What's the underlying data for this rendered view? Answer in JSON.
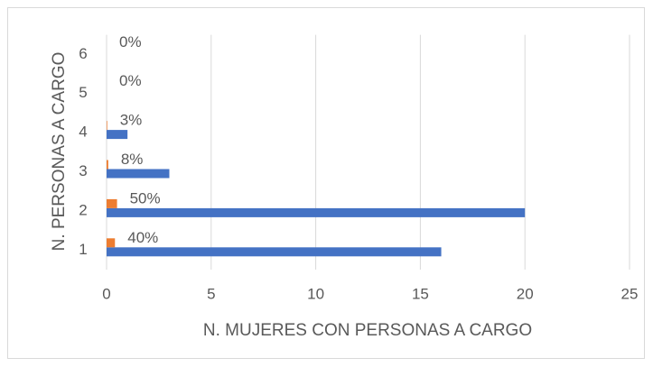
{
  "chart_data": {
    "type": "hbar",
    "categories": [
      "1",
      "2",
      "3",
      "4",
      "5",
      "6"
    ],
    "series": [
      {
        "color": "#4472c4",
        "values": [
          16,
          20,
          3,
          1,
          0,
          0
        ]
      },
      {
        "color": "#ed7d31",
        "values": [
          0.4,
          0.5,
          0.08,
          0.03,
          0,
          0
        ],
        "value_labels": [
          "40%",
          "50%",
          "8%",
          "3%",
          "0%",
          "0%"
        ]
      }
    ],
    "xlabel": "N. MUJERES CON PERSONAS A CARGO",
    "ylabel": "N. PERSONAS A CARGO",
    "xlim": [
      0,
      25
    ],
    "xticks": [
      0,
      5,
      10,
      15,
      20,
      25
    ],
    "grid": true
  }
}
